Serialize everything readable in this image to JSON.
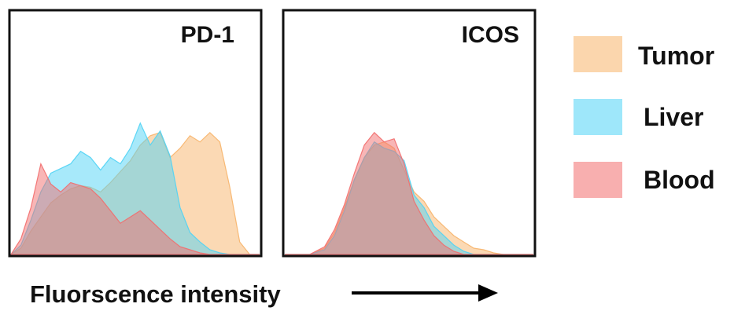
{
  "chart_data": [
    {
      "type": "area",
      "title": "PD-1",
      "x_domain": [
        0,
        100
      ],
      "y_domain": [
        0,
        100
      ],
      "series": [
        {
          "name": "Tumor",
          "color": "#f7b46a",
          "x": [
            0,
            4,
            8,
            12,
            16,
            20,
            24,
            28,
            32,
            36,
            40,
            44,
            48,
            52,
            56,
            60,
            64,
            68,
            72,
            76,
            80,
            84,
            88,
            92,
            96,
            100
          ],
          "y": [
            0,
            4,
            15,
            24,
            33,
            38,
            42,
            44,
            43,
            40,
            46,
            53,
            60,
            70,
            76,
            78,
            62,
            68,
            76,
            72,
            78,
            72,
            43,
            8,
            0,
            0
          ]
        },
        {
          "name": "Liver",
          "color": "#4fd3f5",
          "x": [
            0,
            4,
            8,
            12,
            16,
            20,
            24,
            28,
            32,
            36,
            40,
            44,
            48,
            52,
            56,
            60,
            64,
            68,
            72,
            76,
            80,
            84,
            88,
            92,
            96,
            100
          ],
          "y": [
            0,
            6,
            22,
            40,
            52,
            55,
            58,
            66,
            62,
            54,
            62,
            58,
            68,
            84,
            70,
            79,
            63,
            30,
            14,
            8,
            3,
            1,
            0,
            0,
            0,
            0
          ]
        },
        {
          "name": "Blood",
          "color": "#f26d6d",
          "x": [
            0,
            4,
            8,
            12,
            16,
            20,
            24,
            28,
            32,
            36,
            40,
            44,
            48,
            52,
            56,
            60,
            64,
            68,
            72,
            76,
            80,
            84,
            88,
            92,
            96,
            100
          ],
          "y": [
            0,
            10,
            30,
            58,
            45,
            40,
            46,
            44,
            42,
            36,
            28,
            20,
            24,
            28,
            22,
            16,
            10,
            5,
            3,
            1,
            0,
            0,
            0,
            0,
            0,
            0
          ]
        }
      ]
    },
    {
      "type": "area",
      "title": "ICOS",
      "x_domain": [
        0,
        100
      ],
      "y_domain": [
        0,
        100
      ],
      "series": [
        {
          "name": "Tumor",
          "color": "#f7b46a",
          "x": [
            0,
            10,
            16,
            20,
            24,
            28,
            32,
            36,
            40,
            44,
            48,
            52,
            56,
            60,
            64,
            68,
            72,
            76,
            80,
            84,
            88,
            92,
            100
          ],
          "y": [
            0,
            0,
            4,
            14,
            30,
            48,
            62,
            70,
            72,
            68,
            54,
            40,
            34,
            24,
            18,
            12,
            8,
            4,
            3,
            1,
            0,
            0,
            0
          ]
        },
        {
          "name": "Liver",
          "color": "#4fd3f5",
          "x": [
            0,
            10,
            16,
            20,
            24,
            28,
            32,
            36,
            40,
            44,
            48,
            52,
            56,
            60,
            64,
            68,
            72,
            76,
            80,
            84,
            88,
            92,
            100
          ],
          "y": [
            0,
            0,
            3,
            12,
            28,
            48,
            62,
            72,
            68,
            66,
            60,
            38,
            30,
            18,
            12,
            6,
            2,
            0,
            0,
            0,
            0,
            0,
            0
          ]
        },
        {
          "name": "Blood",
          "color": "#f26d6d",
          "x": [
            0,
            10,
            16,
            20,
            24,
            28,
            32,
            36,
            40,
            44,
            48,
            52,
            56,
            60,
            64,
            68,
            72,
            76,
            80,
            84,
            88,
            92,
            100
          ],
          "y": [
            0,
            0,
            5,
            16,
            32,
            52,
            70,
            78,
            72,
            74,
            58,
            34,
            22,
            12,
            6,
            2,
            0,
            0,
            0,
            0,
            0,
            0,
            0
          ]
        }
      ]
    }
  ],
  "legend": [
    {
      "label": "Tumor",
      "color": "#f7b46a"
    },
    {
      "label": "Liver",
      "color": "#4fd3f5"
    },
    {
      "label": "Blood",
      "color": "#f26d6d"
    }
  ],
  "xlabel": "Fluorscence intensity"
}
